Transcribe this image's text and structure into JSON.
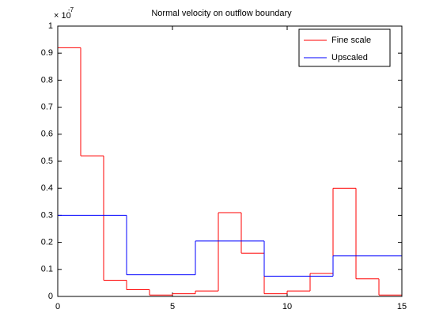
{
  "chart_data": {
    "type": "stairs",
    "title": "Normal velocity on outflow boundary",
    "y_multiplier": {
      "base": "× 10",
      "exponent": "-7"
    },
    "series": [
      {
        "name": "Fine scale",
        "color": "#ff0000",
        "bins": [
          0,
          1,
          2,
          3,
          4,
          5,
          6,
          7,
          8,
          9,
          10,
          11,
          12,
          13,
          14,
          15
        ],
        "values": [
          0.92,
          0.52,
          0.06,
          0.025,
          0.005,
          0.01,
          0.02,
          0.31,
          0.16,
          0.01,
          0.02,
          0.085,
          0.4,
          0.065,
          0.005
        ]
      },
      {
        "name": "Upscaled",
        "color": "#0000ff",
        "bins": [
          0,
          3,
          6,
          9,
          12,
          15
        ],
        "values": [
          0.3,
          0.08,
          0.205,
          0.075,
          0.15
        ]
      }
    ],
    "xlim": [
      0,
      15
    ],
    "xticks": [
      0,
      5,
      10,
      15
    ],
    "ylim": [
      0,
      1
    ],
    "yticks": [
      0,
      0.1,
      0.2,
      0.3,
      0.4,
      0.5,
      0.6,
      0.7,
      0.8,
      0.9,
      1
    ],
    "grid": false,
    "legend": "northeast"
  }
}
